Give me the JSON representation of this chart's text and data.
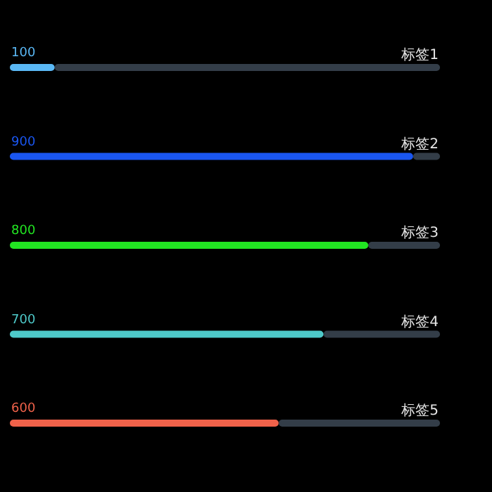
{
  "chart_data": {
    "type": "bar",
    "orientation": "horizontal",
    "categories": [
      "标签1",
      "标签2",
      "标签3",
      "标签4",
      "标签5"
    ],
    "values": [
      100,
      900,
      800,
      700,
      600
    ],
    "colors": [
      "#5ab8f5",
      "#1a56f0",
      "#22e522",
      "#4ec9c9",
      "#f0624a"
    ],
    "xlim": [
      0,
      960
    ],
    "data_labels": true
  }
}
